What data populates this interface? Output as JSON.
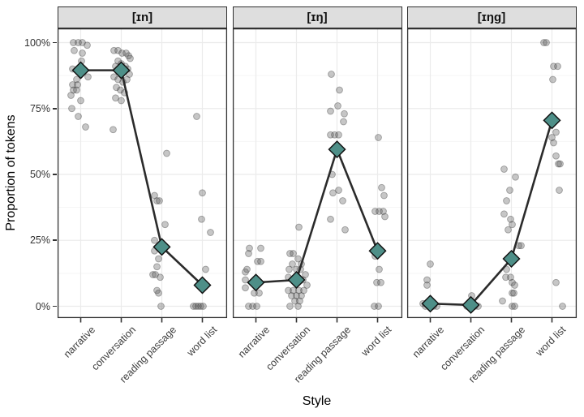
{
  "chart_data": {
    "type": "scatter",
    "subtype": "faceted jittered points with connected mean diamonds (ggplot-style)",
    "title": "",
    "xlabel": "Style",
    "ylabel": "Proportion of tokens",
    "categories": [
      "narrative",
      "conversation",
      "reading passage",
      "word list"
    ],
    "ytick_labels": [
      "0%",
      "25%",
      "50%",
      "75%",
      "100%"
    ],
    "ytick_values": [
      0,
      25,
      50,
      75,
      100
    ],
    "ylim": [
      0,
      100
    ],
    "grid": "horizontal major+minor, vertical major at categories; white panel, light gray grid",
    "legend": "none",
    "facets": [
      {
        "label": "[ɪn]",
        "means": [
          89.5,
          89.5,
          22.5,
          8
        ],
        "points": [
          [
            [
              -9,
              100
            ],
            [
              -3,
              100
            ],
            [
              2,
              100
            ],
            [
              8,
              99
            ],
            [
              -8,
              97
            ],
            [
              2,
              96
            ],
            [
              1,
              93
            ],
            [
              -10,
              90
            ],
            [
              9,
              87
            ],
            [
              -5,
              86
            ],
            [
              -10,
              84
            ],
            [
              -4,
              84
            ],
            [
              -9,
              82
            ],
            [
              -5,
              82
            ],
            [
              -12,
              80
            ],
            [
              0,
              78
            ],
            [
              -11,
              75
            ],
            [
              -3,
              72
            ],
            [
              6,
              68
            ]
          ],
          [
            [
              -9,
              97
            ],
            [
              -4,
              97
            ],
            [
              1,
              96
            ],
            [
              6,
              96
            ],
            [
              9,
              95
            ],
            [
              11,
              94
            ],
            [
              -4,
              93
            ],
            [
              0,
              92
            ],
            [
              -7,
              91
            ],
            [
              5,
              91
            ],
            [
              8,
              90
            ],
            [
              -3,
              90
            ],
            [
              3,
              89
            ],
            [
              10,
              88
            ],
            [
              -9,
              87
            ],
            [
              -4,
              86
            ],
            [
              7,
              86
            ],
            [
              2,
              85
            ],
            [
              -6,
              83
            ],
            [
              -1,
              82
            ],
            [
              4,
              81
            ],
            [
              -7,
              79
            ],
            [
              0,
              78
            ],
            [
              -10,
              67
            ]
          ],
          [
            [
              6,
              58
            ],
            [
              -9,
              42
            ],
            [
              -6,
              40
            ],
            [
              -3,
              40
            ],
            [
              4,
              31
            ],
            [
              -9,
              25
            ],
            [
              -9,
              21
            ],
            [
              -4,
              18
            ],
            [
              -6,
              15
            ],
            [
              -11,
              12
            ],
            [
              -8,
              12
            ],
            [
              -2,
              11
            ],
            [
              -6,
              6
            ],
            [
              -4,
              5
            ],
            [
              -1,
              0
            ]
          ],
          [
            [
              -7,
              72
            ],
            [
              0,
              43
            ],
            [
              -1,
              33
            ],
            [
              10,
              28
            ],
            [
              4,
              14
            ],
            [
              -11,
              0
            ],
            [
              -8,
              0
            ],
            [
              -5,
              0
            ],
            [
              -2,
              0
            ],
            [
              1,
              0
            ]
          ]
        ]
      },
      {
        "label": "[ɪŋ]",
        "means": [
          9,
          10,
          59.5,
          21
        ],
        "points": [
          [
            [
              -8,
              22
            ],
            [
              6,
              22
            ],
            [
              -9,
              20
            ],
            [
              2,
              17
            ],
            [
              6,
              17
            ],
            [
              -11,
              14
            ],
            [
              -13,
              13
            ],
            [
              -13,
              10
            ],
            [
              -13,
              7
            ],
            [
              -2,
              5
            ],
            [
              4,
              5
            ],
            [
              -9,
              0
            ],
            [
              -4,
              0
            ],
            [
              1,
              0
            ]
          ],
          [
            [
              3,
              30
            ],
            [
              -8,
              20
            ],
            [
              -4,
              20
            ],
            [
              2,
              18
            ],
            [
              -5,
              16
            ],
            [
              6,
              16
            ],
            [
              -9,
              14
            ],
            [
              0,
              14
            ],
            [
              5,
              14
            ],
            [
              11,
              12
            ],
            [
              -10,
              11
            ],
            [
              -3,
              10
            ],
            [
              8,
              10
            ],
            [
              13,
              8
            ],
            [
              -10,
              6
            ],
            [
              -4,
              6
            ],
            [
              3,
              6
            ],
            [
              9,
              6
            ],
            [
              -6,
              4
            ],
            [
              0,
              4
            ],
            [
              6,
              4
            ],
            [
              -2,
              2
            ],
            [
              4,
              2
            ],
            [
              -8,
              0
            ],
            [
              2,
              0
            ]
          ],
          [
            [
              -7,
              88
            ],
            [
              3,
              82
            ],
            [
              1,
              76
            ],
            [
              -8,
              74
            ],
            [
              9,
              73
            ],
            [
              8,
              70
            ],
            [
              -8,
              65
            ],
            [
              -3,
              65
            ],
            [
              2,
              65
            ],
            [
              -6,
              50
            ],
            [
              2,
              44
            ],
            [
              -5,
              43
            ],
            [
              7,
              40
            ],
            [
              -8,
              33
            ],
            [
              10,
              29
            ]
          ],
          [
            [
              1,
              64
            ],
            [
              5,
              45
            ],
            [
              8,
              42
            ],
            [
              -3,
              36
            ],
            [
              2,
              36
            ],
            [
              7,
              36
            ],
            [
              9,
              34
            ],
            [
              -3,
              19
            ],
            [
              2,
              14
            ],
            [
              -1,
              9
            ],
            [
              4,
              9
            ],
            [
              -4,
              0
            ],
            [
              1,
              0
            ]
          ]
        ]
      },
      {
        "label": "[ɪŋg]",
        "means": [
          1,
          0.5,
          18,
          70.5
        ],
        "points": [
          [
            [
              0,
              16
            ],
            [
              -4,
              10
            ],
            [
              -4,
              8
            ],
            [
              -9,
              1
            ],
            [
              -6,
              0
            ],
            [
              -1,
              0
            ],
            [
              4,
              0
            ],
            [
              8,
              0
            ]
          ],
          [
            [
              1,
              4
            ],
            [
              -5,
              0
            ],
            [
              0,
              0
            ],
            [
              5,
              0
            ],
            [
              9,
              0
            ]
          ],
          [
            [
              -9,
              52
            ],
            [
              5,
              49
            ],
            [
              -2,
              44
            ],
            [
              -6,
              40
            ],
            [
              -9,
              35
            ],
            [
              -1,
              33
            ],
            [
              1,
              31
            ],
            [
              -4,
              29
            ],
            [
              9,
              23
            ],
            [
              12,
              23
            ],
            [
              -6,
              14
            ],
            [
              -7,
              11
            ],
            [
              -1,
              11
            ],
            [
              1,
              9
            ],
            [
              4,
              8
            ],
            [
              1,
              5
            ],
            [
              3,
              5
            ],
            [
              -11,
              2
            ],
            [
              1,
              0
            ],
            [
              4,
              0
            ]
          ],
          [
            [
              -10,
              100
            ],
            [
              -7,
              100
            ],
            [
              2,
              91
            ],
            [
              7,
              91
            ],
            [
              1,
              86
            ],
            [
              5,
              66
            ],
            [
              0,
              64
            ],
            [
              2,
              62
            ],
            [
              5,
              57
            ],
            [
              8,
              54
            ],
            [
              10,
              54
            ],
            [
              9,
              44
            ],
            [
              5,
              9
            ],
            [
              13,
              0
            ]
          ]
        ]
      }
    ],
    "colors": {
      "mean_marker_fill": "#4e8f88",
      "mean_marker_stroke": "#111111",
      "mean_line": "#2b2b2b",
      "point_fill": "#4d4d4d",
      "point_stroke": "#2e2e2e",
      "strip_background": "#dedede",
      "panel_border": "#333333",
      "grid_major": "#ebebeb",
      "grid_minor": "#f5f5f5",
      "axis_text": "#3d3d3d"
    }
  }
}
